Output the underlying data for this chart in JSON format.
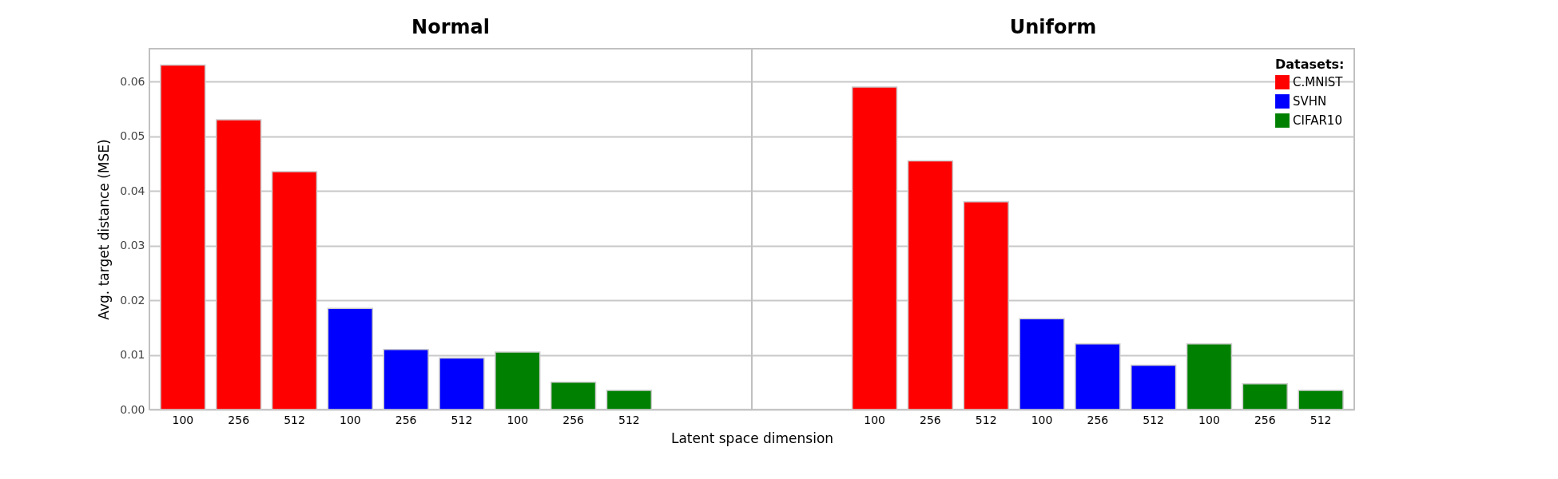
{
  "chart_data": [
    {
      "type": "bar",
      "title": "Normal",
      "xlabel": "Latent space dimension",
      "ylabel": "Avg. target distance (MSE)",
      "categories": [
        "100",
        "256",
        "512",
        "100",
        "256",
        "512",
        "100",
        "256",
        "512"
      ],
      "series": [
        {
          "color": "#ff0000",
          "values": [
            0.063,
            0.053,
            0.0435,
            null,
            null,
            null,
            null,
            null,
            null
          ]
        },
        {
          "color": "#0000ff",
          "values": [
            null,
            null,
            null,
            0.0185,
            0.011,
            0.0094,
            null,
            null,
            null
          ]
        },
        {
          "color": "#008000",
          "values": [
            null,
            null,
            null,
            null,
            null,
            null,
            0.0105,
            0.005,
            0.0035
          ]
        }
      ],
      "ylim": [
        0,
        0.066
      ],
      "yticks": [
        {
          "value": 0,
          "label": "0.00"
        },
        {
          "value": 0.01,
          "label": "0.01"
        },
        {
          "value": 0.02,
          "label": "0.02"
        },
        {
          "value": 0.03,
          "label": "0.03"
        },
        {
          "value": 0.04,
          "label": "0.04"
        },
        {
          "value": 0.05,
          "label": "0.05"
        },
        {
          "value": 0.06,
          "label": "0.06"
        }
      ],
      "grid": "y"
    },
    {
      "type": "bar",
      "title": "Uniform",
      "categories": [
        "100",
        "256",
        "512",
        "100",
        "256",
        "512",
        "100",
        "256",
        "512"
      ],
      "series": [
        {
          "name": "C.MNIST",
          "color": "#ff0000",
          "values": [
            0.059,
            0.0455,
            0.038,
            null,
            null,
            null,
            null,
            null,
            null
          ]
        },
        {
          "name": "SVHN",
          "color": "#0000ff",
          "values": [
            null,
            null,
            null,
            0.0166,
            0.012,
            0.0081,
            null,
            null,
            null
          ]
        },
        {
          "name": "CIFAR10",
          "color": "#008000",
          "values": [
            null,
            null,
            null,
            null,
            null,
            null,
            0.012,
            0.0047,
            0.0035
          ]
        }
      ],
      "ylim": [
        0,
        0.066
      ],
      "yticks": [
        {
          "value": 0,
          "label": null
        },
        {
          "value": 0.01,
          "label": null
        },
        {
          "value": 0.02,
          "label": null
        },
        {
          "value": 0.03,
          "label": null
        },
        {
          "value": 0.04,
          "label": null
        },
        {
          "value": 0.05,
          "label": null
        },
        {
          "value": 0.06,
          "label": null
        }
      ],
      "grid": "y",
      "tick_labels": "x",
      "legend": "top right",
      "legend_title": "Datasets:"
    }
  ]
}
